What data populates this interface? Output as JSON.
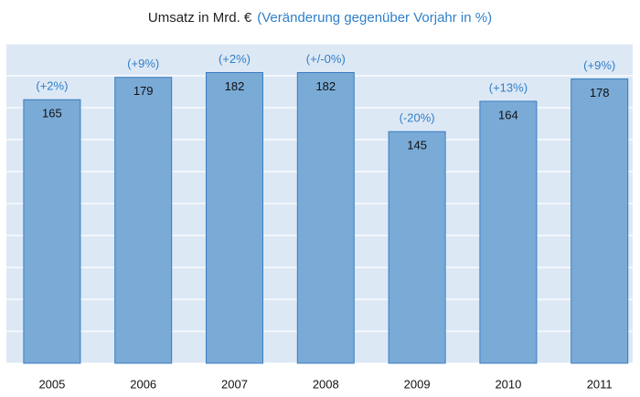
{
  "chart_data": {
    "type": "bar",
    "title": "Umsatz in Mrd. €",
    "subtitle": "(Veränderung gegenüber Vorjahr in %)",
    "categories": [
      "2005",
      "2006",
      "2007",
      "2008",
      "2009",
      "2010",
      "2011"
    ],
    "values": [
      165,
      179,
      182,
      182,
      145,
      164,
      178
    ],
    "annotations": [
      "(+2%)",
      "(+9%)",
      "(+2%)",
      "(+/-0%)",
      "(-20%)",
      "(+13%)",
      "(+9%)"
    ],
    "color": "#7aaad6",
    "ylim": [
      0,
      200
    ],
    "yticks": [
      0,
      20,
      40,
      60,
      80,
      100,
      120,
      140,
      160,
      180,
      200
    ],
    "grid": true
  }
}
